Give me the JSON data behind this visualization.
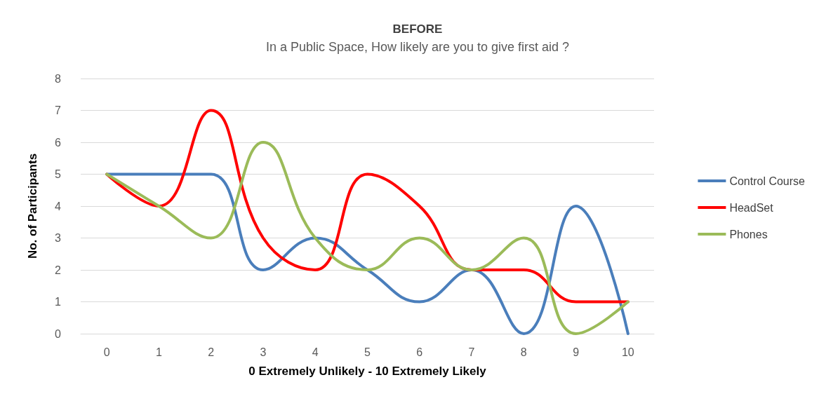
{
  "chart_data": {
    "type": "line",
    "title": "BEFORE",
    "subtitle": "In a Public Space, How likely are you to give first aid ?",
    "xlabel": "0 Extremely Unlikely - 10 Extremely Likely",
    "ylabel": "No. of Participants",
    "categories": [
      "0",
      "1",
      "2",
      "3",
      "4",
      "5",
      "6",
      "7",
      "8",
      "9",
      "10"
    ],
    "series": [
      {
        "name": "Control Course",
        "color": "#4a7ebb",
        "values": [
          5,
          5,
          5,
          2,
          3,
          2,
          1,
          2,
          0,
          4,
          0
        ]
      },
      {
        "name": "HeadSet",
        "color": "#ff0000",
        "values": [
          5,
          4,
          7,
          3,
          2,
          5,
          4,
          2,
          2,
          1,
          1
        ]
      },
      {
        "name": "Phones",
        "color": "#9bbb59",
        "values": [
          5,
          4,
          3,
          6,
          3,
          2,
          3,
          2,
          3,
          0,
          1
        ]
      }
    ],
    "ylim": [
      0,
      8
    ],
    "yticks": [
      0,
      1,
      2,
      3,
      4,
      5,
      6,
      7,
      8
    ],
    "grid": "y",
    "legend": "right",
    "marker": "none",
    "line_style": "solid"
  }
}
